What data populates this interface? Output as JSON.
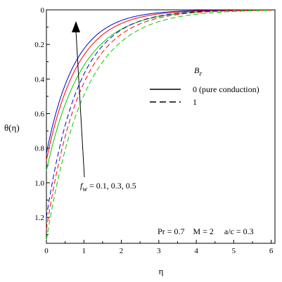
{
  "chart_data": {
    "type": "line",
    "title": "",
    "xlabel": "η",
    "ylabel": "θ(η)",
    "xlim": [
      0,
      6.1
    ],
    "ylim": [
      1.35,
      0
    ],
    "y_axis_inverted": true,
    "grid": false,
    "x_ticks": [
      0,
      1,
      2,
      3,
      4,
      5,
      6
    ],
    "x_tick_labels": [
      "0",
      "1",
      "2",
      "3",
      "4",
      "5",
      "6"
    ],
    "y_ticks": [
      0,
      0.2,
      0.4,
      0.6,
      0.8,
      1.0,
      1.2
    ],
    "y_tick_labels": [
      "0",
      "0.2",
      "0.4",
      "0.6",
      "0.8",
      "1.0",
      "1.2"
    ],
    "legend": {
      "title_main": "B",
      "title_sub": "r",
      "placement": "right",
      "entries": [
        {
          "label": "0 (pure conduction)",
          "style": "solid"
        },
        {
          "label": "1",
          "style": "dashed"
        }
      ]
    },
    "annotations": {
      "fw_main": "f",
      "fw_sub": "w",
      "fw_values": " = 0.1, 0.3, 0.5",
      "params": "Pr = 0.7    M = 2     a/c = 0.3"
    },
    "series": [
      {
        "style": "solid",
        "color": "#0000cc",
        "theta0": 0.83,
        "k": 1.3
      },
      {
        "style": "solid",
        "color": "#ff0000",
        "theta0": 0.87,
        "k": 1.2
      },
      {
        "style": "solid",
        "color": "#00cc00",
        "theta0": 0.93,
        "k": 1.06
      },
      {
        "style": "dashed",
        "color": "#0000cc",
        "theta0": 1.2,
        "k": 1.17
      },
      {
        "style": "dashed",
        "color": "#ff0000",
        "theta0": 1.27,
        "k": 1.1
      },
      {
        "style": "dashed",
        "color": "#00cc00",
        "theta0": 1.33,
        "k": 0.99
      }
    ]
  }
}
